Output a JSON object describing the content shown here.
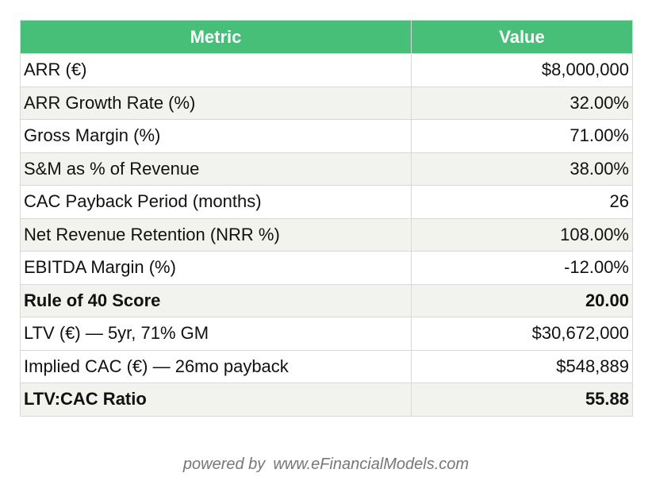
{
  "table": {
    "headers": {
      "metric": "Metric",
      "value": "Value"
    },
    "rows": [
      {
        "metric": "ARR (€)",
        "value": "$8,000,000"
      },
      {
        "metric": "ARR Growth Rate (%)",
        "value": "32.00%"
      },
      {
        "metric": "Gross Margin (%)",
        "value": "71.00%"
      },
      {
        "metric": "S&M as % of Revenue",
        "value": "38.00%"
      },
      {
        "metric": "CAC Payback Period (months)",
        "value": "26"
      },
      {
        "metric": "Net Revenue Retention (NRR %)",
        "value": "108.00%"
      },
      {
        "metric": "EBITDA Margin (%)",
        "value": "-12.00%"
      },
      {
        "metric": "Rule of 40 Score",
        "value": "20.00",
        "bold": true
      },
      {
        "metric": "LTV (€) — 5yr, 71% GM",
        "value": "$30,672,000"
      },
      {
        "metric": "Implied CAC (€) — 26mo payback",
        "value": "$548,889"
      },
      {
        "metric": "LTV:CAC Ratio",
        "value": "55.88",
        "bold": true
      }
    ]
  },
  "footer": {
    "powered_by": "powered by",
    "site": "www.eFinancialModels.com"
  },
  "colors": {
    "header_bg": "#47bf79",
    "header_text": "#ffffff",
    "row_alt_bg": "#f2f2ee",
    "footer_text": "#777777"
  }
}
